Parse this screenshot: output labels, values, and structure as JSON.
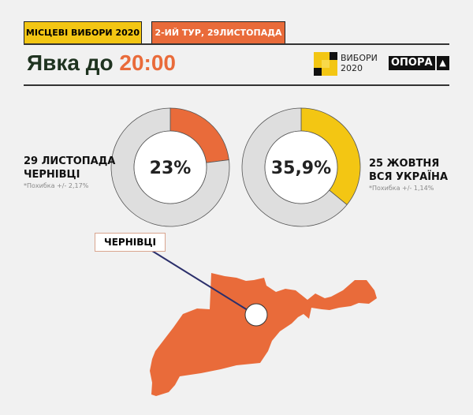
{
  "header": {
    "tab1": "МІСЦЕВІ ВИБОРИ 2020",
    "tab2": "2-ИЙ ТУР, 29ЛИСТОПАДА",
    "title_prefix": "Явка до",
    "title_time": "20:00",
    "logo1_line1": "ВИБОРИ",
    "logo1_line2": "2020",
    "logo2": "ОПОРА"
  },
  "colors": {
    "orange": "#e96b3a",
    "yellow": "#f3c613",
    "grey": "#dedede",
    "dark": "#1f3320"
  },
  "chart_data": [
    {
      "type": "pie",
      "variant": "donut",
      "values": [
        23,
        77
      ],
      "center_label": "23%",
      "date": "29 ЛИСТОПАДА",
      "place": "ЧЕРНІВЦІ",
      "note": "*Похибка +/- 2,17%",
      "color": "#e96b3a"
    },
    {
      "type": "pie",
      "variant": "donut",
      "values": [
        35.9,
        64.1
      ],
      "center_label": "35,9%",
      "date": "25 ЖОВТНЯ",
      "place": "ВСЯ УКРАЇНА",
      "note": "*Похибка +/- 1,14%",
      "color": "#f3c613"
    }
  ],
  "map": {
    "label": "ЧЕРНІВЦІ"
  }
}
